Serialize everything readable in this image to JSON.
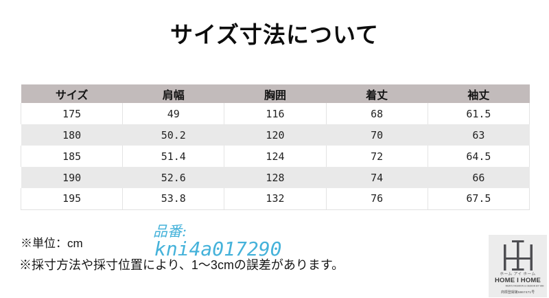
{
  "title": "サイズ寸法について",
  "chart_data": {
    "type": "table",
    "title": "サイズ寸法について",
    "columns": [
      "サイズ",
      "肩幅",
      "胸囲",
      "着丈",
      "袖丈"
    ],
    "rows": [
      [
        "175",
        "49",
        "116",
        "68",
        "61.5"
      ],
      [
        "180",
        "50.2",
        "120",
        "70",
        "63"
      ],
      [
        "185",
        "51.4",
        "124",
        "72",
        "64.5"
      ],
      [
        "190",
        "52.6",
        "128",
        "74",
        "66"
      ],
      [
        "195",
        "53.8",
        "132",
        "76",
        "67.5"
      ]
    ],
    "unit": "cm",
    "header_bg": "#c2bbbb",
    "stripe_bg": "#e9e9e9"
  },
  "notes": {
    "unit": "※単位：cm",
    "tolerance": "※採寸方法や採寸位置により、1～3cmの誤差があります。"
  },
  "watermark": {
    "label": "品番:",
    "code": "kni4a017290",
    "color": "#45b2da"
  },
  "logo": {
    "name_ja": "ホーム アイ ホーム",
    "name_en": "HOME I HOME",
    "tagline": "MEN'S FASHION & DESIGN BY HIH",
    "trademark": "商標登録第5867471号",
    "monogram_color": "#4e4e52"
  }
}
